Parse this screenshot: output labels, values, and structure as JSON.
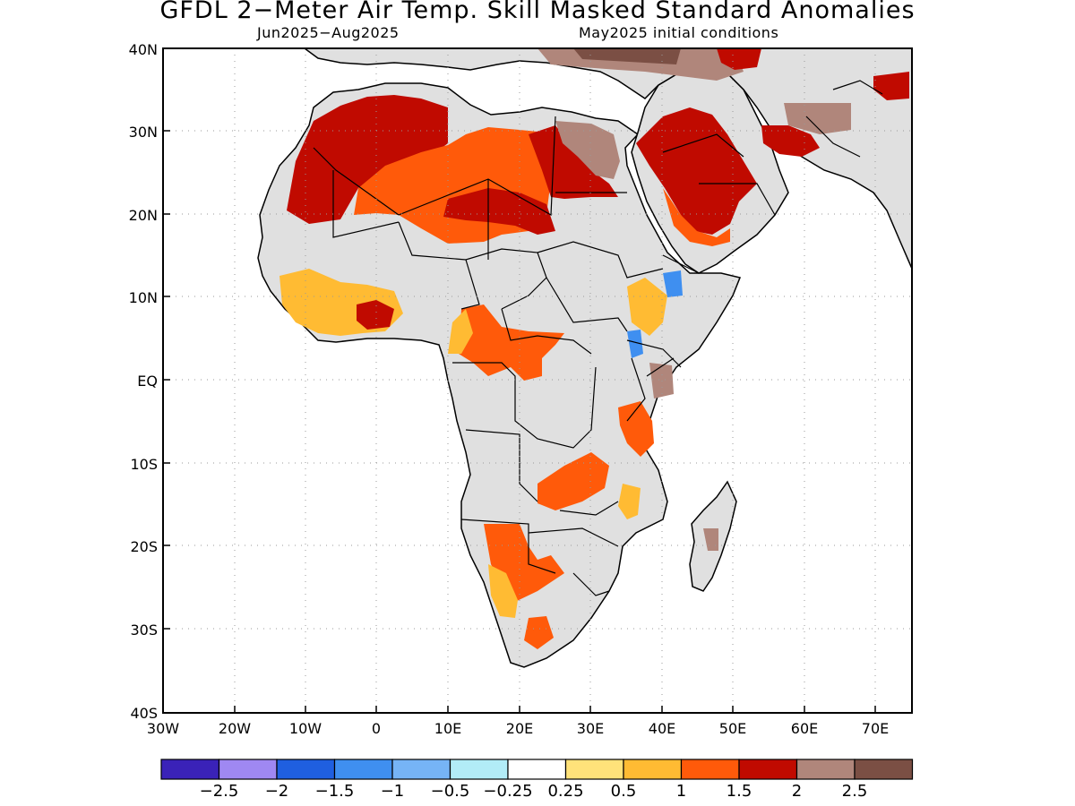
{
  "title": "GFDL 2−Meter Air Temp. Skill Masked Standard Anomalies",
  "subtitle_left": "Jun2025−Aug2025",
  "subtitle_right": "May2025 initial conditions",
  "axes": {
    "lat_labels": [
      "40N",
      "30N",
      "20N",
      "10N",
      "EQ",
      "10S",
      "20S",
      "30S",
      "40S"
    ],
    "lon_labels": [
      "30W",
      "20W",
      "10W",
      "0",
      "10E",
      "20E",
      "30E",
      "40E",
      "50E",
      "60E",
      "70E"
    ]
  },
  "colorbar": {
    "colors": [
      "#3a22b8",
      "#9f88f2",
      "#1f5fe0",
      "#3f8ff0",
      "#76b4f6",
      "#b2ecf7",
      "#ffffff",
      "#ffe27a",
      "#ffbb33",
      "#ff5a0a",
      "#c00a00",
      "#b0867b",
      "#7b4f44"
    ],
    "labels": [
      "−2.5",
      "−2",
      "−1.5",
      "−1",
      "−0.5",
      "−0.25",
      "0.25",
      "0.5",
      "1",
      "1.5",
      "2",
      "2.5"
    ]
  },
  "colors": {
    "land_masked": "#e0e0e0",
    "ocean": "#ffffff",
    "grid": "#9a9a9a"
  }
}
